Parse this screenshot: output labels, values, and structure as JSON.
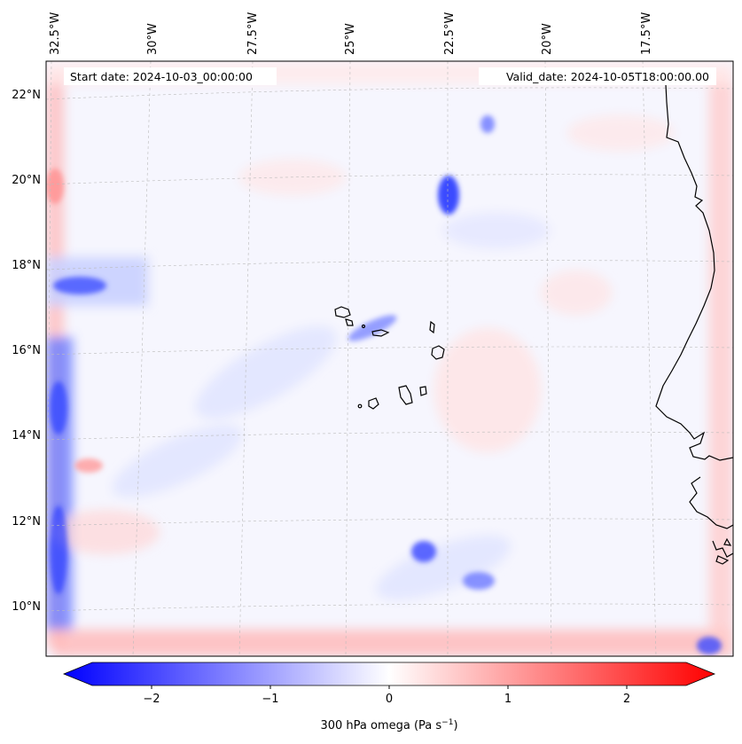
{
  "header": {
    "start_date": "Start date: 2024-10-03_00:00:00",
    "valid_date": "Valid_date: 2024-10-05T18:00:00.00"
  },
  "lon_labels": [
    "32.5°W",
    "30°W",
    "27.5°W",
    "25°W",
    "22.5°W",
    "20°W",
    "17.5°W"
  ],
  "lat_labels": [
    "22°N",
    "20°N",
    "18°N",
    "16°N",
    "14°N",
    "12°N",
    "10°N"
  ],
  "colorbar": {
    "ticks": [
      "−2",
      "−1",
      "0",
      "1",
      "2"
    ],
    "label_prefix": "300 hPa omega (Pa s",
    "label_exp": "−1",
    "label_suffix": ")",
    "colors": {
      "negative": "#0000ff",
      "zero": "#ffffff",
      "positive": "#ff0000"
    }
  },
  "features": {
    "blue_anomalies": [
      "left-edge band",
      "patch near 20°N 23°W",
      "band 17.5°N off west edge",
      "patches near 11°N 22°W"
    ],
    "red_anomalies": [
      "left-edge band",
      "bottom-edge band",
      "right-edge band"
    ]
  }
}
